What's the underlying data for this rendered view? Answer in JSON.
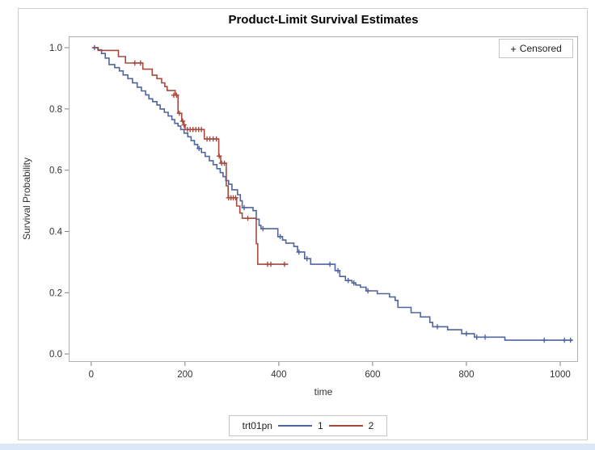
{
  "title": "Product-Limit Survival Estimates",
  "censored_legend": {
    "marker": "+",
    "label": "Censored"
  },
  "axes": {
    "x_label": "time",
    "y_label": "Survival Probability"
  },
  "group_legend": {
    "title": "trt01pn",
    "item1": "1",
    "item2": "2"
  },
  "chart_data": {
    "type": "line",
    "subtype": "kaplan-meier-step",
    "title": "Product-Limit Survival Estimates",
    "xlabel": "time",
    "ylabel": "Survival Probability",
    "xlim": [
      -48,
      1038
    ],
    "ylim": [
      -0.026,
      1.037
    ],
    "x_ticks": [
      0,
      200,
      400,
      600,
      800,
      1000
    ],
    "y_ticks": [
      {
        "v": 0.0,
        "label": "0.0"
      },
      {
        "v": 0.2,
        "label": "0.2"
      },
      {
        "v": 0.4,
        "label": "0.4"
      },
      {
        "v": 0.6,
        "label": "0.6"
      },
      {
        "v": 0.8,
        "label": "0.8"
      },
      {
        "v": 1.0,
        "label": "1.0"
      }
    ],
    "grid": false,
    "frame_color": "#b0b0b0",
    "tick_color": "#808080",
    "legend_position": "bottom",
    "censored_marker": "+",
    "series": [
      {
        "name": "1",
        "color": "#50659e",
        "steps": [
          [
            3,
            1.0
          ],
          [
            14,
            0.993
          ],
          [
            22,
            0.981
          ],
          [
            30,
            0.966
          ],
          [
            38,
            0.945
          ],
          [
            50,
            0.935
          ],
          [
            60,
            0.924
          ],
          [
            68,
            0.911
          ],
          [
            78,
            0.899
          ],
          [
            88,
            0.885
          ],
          [
            98,
            0.871
          ],
          [
            107,
            0.859
          ],
          [
            116,
            0.846
          ],
          [
            123,
            0.833
          ],
          [
            131,
            0.824
          ],
          [
            140,
            0.813
          ],
          [
            147,
            0.8
          ],
          [
            156,
            0.789
          ],
          [
            164,
            0.777
          ],
          [
            172,
            0.765
          ],
          [
            178,
            0.753
          ],
          [
            185,
            0.744
          ],
          [
            191,
            0.733
          ],
          [
            198,
            0.721
          ],
          [
            206,
            0.709
          ],
          [
            213,
            0.697
          ],
          [
            220,
            0.684
          ],
          [
            227,
            0.671
          ],
          [
            235,
            0.658
          ],
          [
            243,
            0.645
          ],
          [
            252,
            0.631
          ],
          [
            260,
            0.618
          ],
          [
            268,
            0.605
          ],
          [
            275,
            0.592
          ],
          [
            281,
            0.579
          ],
          [
            287,
            0.566
          ],
          [
            293,
            0.554
          ],
          [
            300,
            0.536
          ],
          [
            312,
            0.52
          ],
          [
            318,
            0.5
          ],
          [
            322,
            0.478
          ],
          [
            345,
            0.468
          ],
          [
            352,
            0.44
          ],
          [
            358,
            0.42
          ],
          [
            362,
            0.409
          ],
          [
            398,
            0.383
          ],
          [
            408,
            0.372
          ],
          [
            415,
            0.362
          ],
          [
            432,
            0.351
          ],
          [
            440,
            0.333
          ],
          [
            455,
            0.311
          ],
          [
            468,
            0.293
          ],
          [
            520,
            0.272
          ],
          [
            530,
            0.253
          ],
          [
            542,
            0.24
          ],
          [
            556,
            0.232
          ],
          [
            564,
            0.225
          ],
          [
            574,
            0.218
          ],
          [
            586,
            0.206
          ],
          [
            610,
            0.197
          ],
          [
            636,
            0.186
          ],
          [
            648,
            0.175
          ],
          [
            654,
            0.152
          ],
          [
            682,
            0.135
          ],
          [
            702,
            0.121
          ],
          [
            722,
            0.103
          ],
          [
            728,
            0.089
          ],
          [
            760,
            0.079
          ],
          [
            790,
            0.066
          ],
          [
            817,
            0.055
          ],
          [
            882,
            0.045
          ],
          [
            1026,
            0.045
          ]
        ],
        "censors": [
          [
            7,
            1.0
          ],
          [
            230,
            0.671
          ],
          [
            326,
            0.478
          ],
          [
            366,
            0.409
          ],
          [
            403,
            0.383
          ],
          [
            443,
            0.333
          ],
          [
            460,
            0.311
          ],
          [
            509,
            0.293
          ],
          [
            526,
            0.272
          ],
          [
            548,
            0.24
          ],
          [
            560,
            0.232
          ],
          [
            590,
            0.206
          ],
          [
            738,
            0.089
          ],
          [
            800,
            0.066
          ],
          [
            822,
            0.055
          ],
          [
            840,
            0.055
          ],
          [
            966,
            0.045
          ],
          [
            1009,
            0.045
          ],
          [
            1022,
            0.045
          ]
        ]
      },
      {
        "name": "2",
        "color": "#a8493e",
        "steps": [
          [
            3,
            1.0
          ],
          [
            15,
            0.991
          ],
          [
            58,
            0.971
          ],
          [
            73,
            0.95
          ],
          [
            110,
            0.93
          ],
          [
            130,
            0.91
          ],
          [
            140,
            0.899
          ],
          [
            150,
            0.885
          ],
          [
            157,
            0.873
          ],
          [
            162,
            0.86
          ],
          [
            179,
            0.845
          ],
          [
            185,
            0.786
          ],
          [
            193,
            0.76
          ],
          [
            197,
            0.748
          ],
          [
            200,
            0.733
          ],
          [
            241,
            0.702
          ],
          [
            272,
            0.646
          ],
          [
            276,
            0.623
          ],
          [
            288,
            0.549
          ],
          [
            292,
            0.51
          ],
          [
            310,
            0.483
          ],
          [
            317,
            0.46
          ],
          [
            322,
            0.443
          ],
          [
            352,
            0.36
          ],
          [
            355,
            0.293
          ],
          [
            420,
            0.293
          ]
        ],
        "censors": [
          [
            93,
            0.95
          ],
          [
            105,
            0.95
          ],
          [
            176,
            0.845
          ],
          [
            182,
            0.845
          ],
          [
            188,
            0.786
          ],
          [
            195,
            0.76
          ],
          [
            198,
            0.748
          ],
          [
            205,
            0.733
          ],
          [
            211,
            0.733
          ],
          [
            217,
            0.733
          ],
          [
            223,
            0.733
          ],
          [
            229,
            0.733
          ],
          [
            235,
            0.733
          ],
          [
            247,
            0.702
          ],
          [
            253,
            0.702
          ],
          [
            260,
            0.702
          ],
          [
            267,
            0.702
          ],
          [
            273,
            0.646
          ],
          [
            278,
            0.623
          ],
          [
            284,
            0.623
          ],
          [
            293,
            0.51
          ],
          [
            298,
            0.51
          ],
          [
            303,
            0.51
          ],
          [
            308,
            0.51
          ],
          [
            334,
            0.443
          ],
          [
            376,
            0.293
          ],
          [
            383,
            0.293
          ],
          [
            412,
            0.293
          ]
        ]
      }
    ]
  }
}
